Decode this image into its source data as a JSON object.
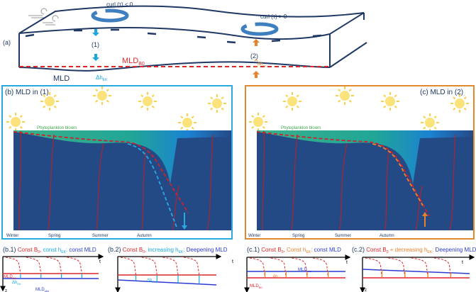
{
  "panel_a": {
    "label": "(a)",
    "curl_neg": "curl (τ) < 0",
    "curl_pos": "curl (τ) > 0",
    "site1": "(1)",
    "site2": "(2)",
    "mld_b0": "MLD",
    "mld_b0_sub": "B0",
    "mld": "MLD",
    "dh": "Δh",
    "dh_sub": "EK"
  },
  "panel_b": {
    "title": "(b) MLD in (1)",
    "bloom": "Phytoplankton bloom",
    "seasons": [
      "Winter",
      "Spring",
      "Summer",
      "Autumn"
    ]
  },
  "panel_c": {
    "title": "(c) MLD in (2)",
    "bloom": "Phytoplankton bloom",
    "seasons": [
      "Winter",
      "Spring",
      "Summer",
      "Autumn"
    ]
  },
  "sub_b1": {
    "label": "(b.1)",
    "t1": "Const B",
    "t1s": "0",
    "sep1": ", ",
    "t2": "const h",
    "t2s": "EK",
    "sep2": ": ",
    "t3": "const MLD",
    "mld_b0": "MLD",
    "mld_b0_sub": "B0",
    "dh": "Δh",
    "dh_sub": "EK",
    "mld_obs": "MLD",
    "mld_obs_sub": "obs",
    "t": "t",
    "z": "z"
  },
  "sub_b2": {
    "label": "(b.2)",
    "t1": "Const B",
    "t1s": "0",
    "sep1": ", ",
    "t2": "increasing h",
    "t2s": "EK",
    "sep2": ": ",
    "t3": "Deepening MLD",
    "dh": "Δh",
    "dh_sub": "EK",
    "t": "t"
  },
  "sub_c1": {
    "label": "(c.1)",
    "t1": "Const B",
    "t1s": "0",
    "sep1": ", ",
    "t2": "Const h",
    "t2s": "EK",
    "sep2": ": ",
    "t3": "const MLD",
    "mld_obs": "MLD",
    "mld_obs_sub": "obs",
    "dh": "Δh",
    "dh_sub": "EK",
    "mld_b0": "MLD",
    "mld_b0_sub": "B0",
    "t": "t"
  },
  "sub_c2": {
    "label": "(c.2)",
    "t1": "Const B",
    "t1s": "0",
    "sep1": " + ",
    "t2": "decreasing h",
    "t2s": "EK",
    "sep2": ": ",
    "t3": "Deepening MLD",
    "t": "t",
    "z": "z"
  },
  "colors": {
    "navy": "#1f3864",
    "ocean": "#244a86",
    "red": "#e0262b",
    "cyan": "#1aa7e0",
    "orange": "#e8822d",
    "blue": "#2b3bd1",
    "green": "#3aa84a"
  }
}
